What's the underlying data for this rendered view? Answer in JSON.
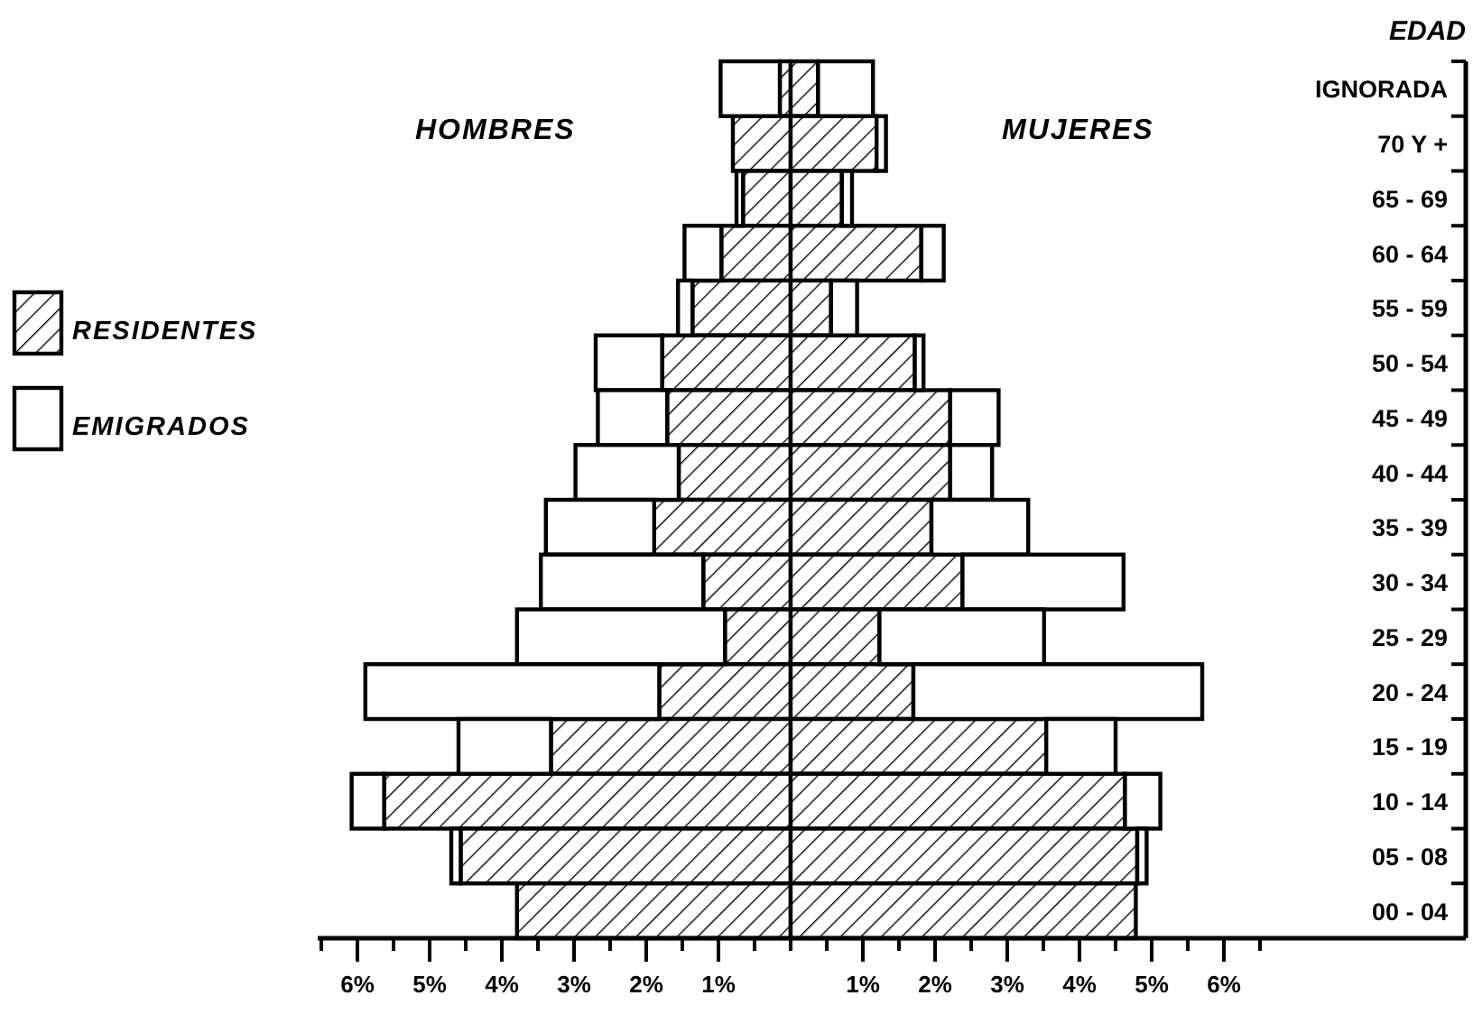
{
  "chart_data": {
    "type": "bar",
    "orientation": "horizontal",
    "stacked": true,
    "categories": [
      "IGNORADA",
      "70 Y +",
      "65 - 69",
      "60 - 64",
      "55 - 59",
      "50 - 54",
      "45 - 49",
      "40 - 44",
      "35 - 39",
      "30 - 34",
      "25 - 29",
      "20 - 24",
      "15 - 19",
      "10 - 14",
      "05 - 08",
      "00 - 04"
    ],
    "ylabel": "EDAD",
    "annotations": [
      "HOMBRES",
      "MUJERES"
    ],
    "series": [
      {
        "name": "RESIDENTES",
        "color": "#000000",
        "values": [
          -0.15,
          -0.8,
          -0.66,
          -0.96,
          -1.36,
          -1.78,
          -1.71,
          -1.55,
          -1.89,
          -1.21,
          -0.91,
          -1.82,
          -3.32,
          -5.63,
          -4.57,
          -3.79
        ]
      },
      {
        "name": "EMIGRADOS",
        "color": "#ffffff",
        "values": [
          -0.82,
          0,
          -0.09,
          -0.51,
          -0.2,
          -0.92,
          -0.96,
          -1.43,
          -1.5,
          -2.25,
          -2.88,
          -4.07,
          -1.28,
          -0.45,
          -0.13,
          0
        ]
      },
      {
        "color": "#000000",
        "values": [
          0.38,
          1.19,
          0.71,
          1.81,
          0.56,
          1.72,
          2.21,
          2.21,
          1.95,
          2.38,
          1.23,
          1.7,
          3.54,
          4.63,
          4.8,
          4.78
        ]
      },
      {
        "color": "#ffffff",
        "values": [
          0.76,
          0.13,
          0.14,
          0.31,
          0.36,
          0.12,
          0.67,
          0.58,
          1.34,
          2.23,
          2.28,
          4.0,
          0.96,
          0.49,
          0.13,
          0
        ]
      }
    ],
    "xlim": [
      -6.55,
      9.35
    ],
    "xticks": [
      {
        "value": -6.5,
        "label": null
      },
      {
        "value": -6,
        "label": "6%"
      },
      {
        "value": -5.5,
        "label": null
      },
      {
        "value": -5,
        "label": "5%"
      },
      {
        "value": -4.5,
        "label": null
      },
      {
        "value": -4,
        "label": "4%"
      },
      {
        "value": -3.5,
        "label": null
      },
      {
        "value": -3,
        "label": "3%"
      },
      {
        "value": -2.5,
        "label": null
      },
      {
        "value": -2,
        "label": "2%"
      },
      {
        "value": -1.5,
        "label": null
      },
      {
        "value": -1,
        "label": "1%"
      },
      {
        "value": -0.5,
        "label": null
      },
      {
        "value": 0,
        "label": null
      },
      {
        "value": 0.5,
        "label": null
      },
      {
        "value": 1,
        "label": "1%"
      },
      {
        "value": 1.5,
        "label": null
      },
      {
        "value": 2,
        "label": "2%"
      },
      {
        "value": 2.5,
        "label": null
      },
      {
        "value": 3,
        "label": "3%"
      },
      {
        "value": 3.5,
        "label": null
      },
      {
        "value": 4,
        "label": "4%"
      },
      {
        "value": 4.5,
        "label": null
      },
      {
        "value": 5,
        "label": "5%"
      },
      {
        "value": 5.5,
        "label": null
      },
      {
        "value": 6,
        "label": "6%"
      },
      {
        "value": 6.5,
        "label": null
      }
    ],
    "legend": "left",
    "grid": false
  }
}
